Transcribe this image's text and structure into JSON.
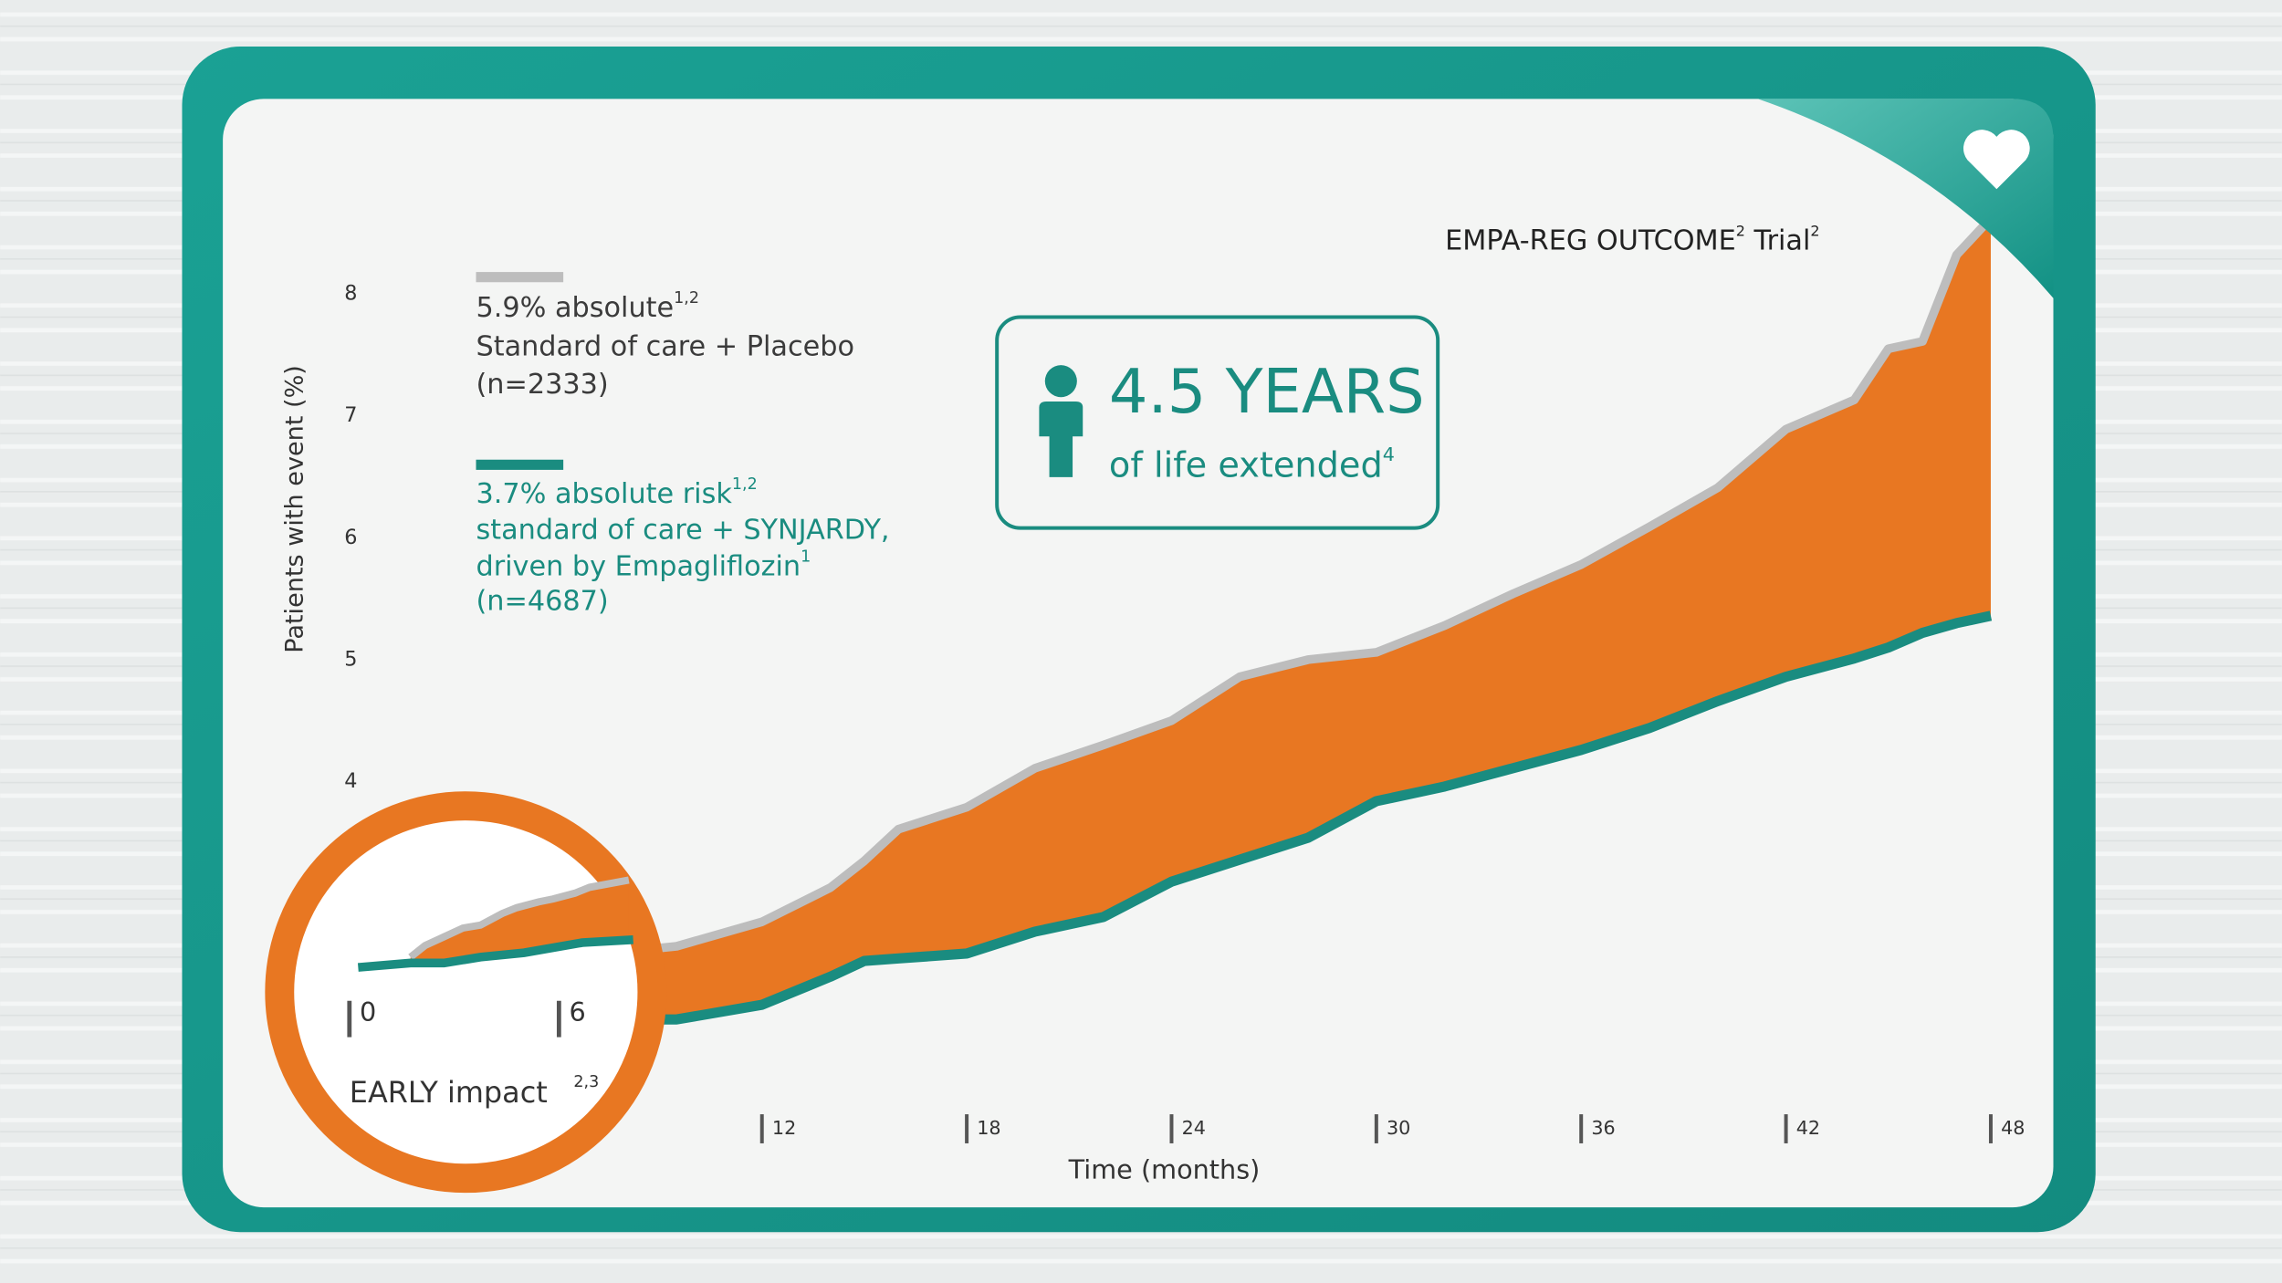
{
  "chart_data": {
    "type": "line",
    "title": "EMPA-REG OUTCOME",
    "title_ref": "2",
    "title_suffix": " Trial",
    "title_suffix_ref": "2",
    "ylabel": "Patients with event (%)",
    "xlabel": "Time (months)",
    "x": [
      0,
      6,
      9.5,
      12,
      14,
      15,
      16,
      18,
      20,
      22,
      24,
      26,
      28,
      30,
      32,
      34,
      36,
      38,
      40,
      42,
      44,
      45,
      46,
      47,
      48
    ],
    "series": [
      {
        "name": "Standard of care + Placebo",
        "stat": "5.9% absolute",
        "stat_ref": "1,2",
        "n": "(n=2333)",
        "color": "#bdbdbd",
        "values": [
          2.4,
          2.55,
          2.65,
          2.85,
          3.13,
          3.35,
          3.61,
          3.79,
          4.11,
          4.3,
          4.5,
          4.86,
          5.0,
          5.06,
          5.28,
          5.54,
          5.78,
          6.09,
          6.41,
          6.89,
          7.13,
          7.55,
          7.61,
          8.32,
          8.62
        ]
      },
      {
        "name_lines": [
          "standard of care + SYNJARDY,",
          "driven by Empagliflozin"
        ],
        "name_ref": "1",
        "stat": "3.7% absolute risk",
        "stat_ref": "1,2",
        "n": "(n=4687)",
        "color": "#1a8c80",
        "values": [
          2.1,
          2.05,
          2.05,
          2.17,
          2.4,
          2.53,
          2.55,
          2.59,
          2.77,
          2.89,
          3.18,
          3.36,
          3.54,
          3.84,
          3.96,
          4.11,
          4.26,
          4.44,
          4.66,
          4.86,
          5.01,
          5.1,
          5.22,
          5.3,
          5.36
        ]
      }
    ],
    "fill_between_color": "#e87722",
    "xlim": [
      0,
      48
    ],
    "ylim": [
      2,
      8
    ],
    "xticks": [
      12,
      18,
      24,
      30,
      36,
      42,
      48
    ],
    "yticks": [
      4,
      5,
      6,
      7,
      8
    ],
    "grid": false,
    "inset": {
      "label": "EARLY impact",
      "label_ref": "2,3",
      "xticks": [
        0,
        6
      ]
    },
    "callout": {
      "headline": "4.5 YEARS",
      "text": "of life extended",
      "text_ref": "4"
    }
  }
}
